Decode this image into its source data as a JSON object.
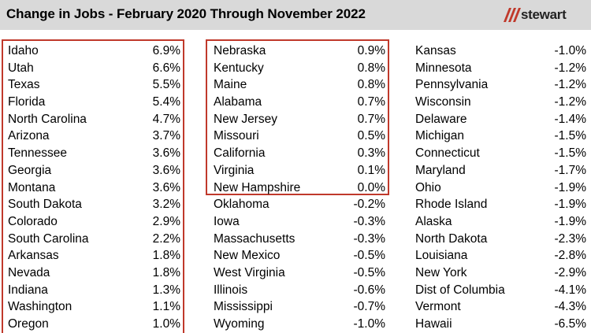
{
  "header": {
    "title": "Change in Jobs - February 2020 Through November 2022",
    "logo_text": "stewart",
    "accent_color": "#c0392b"
  },
  "columns": [
    [
      {
        "state": "Idaho",
        "change": "6.9%"
      },
      {
        "state": "Utah",
        "change": "6.6%"
      },
      {
        "state": "Texas",
        "change": "5.5%"
      },
      {
        "state": "Florida",
        "change": "5.4%"
      },
      {
        "state": "North Carolina",
        "change": "4.7%"
      },
      {
        "state": "Arizona",
        "change": "3.7%"
      },
      {
        "state": "Tennessee",
        "change": "3.6%"
      },
      {
        "state": "Georgia",
        "change": "3.6%"
      },
      {
        "state": "Montana",
        "change": "3.6%"
      },
      {
        "state": "South Dakota",
        "change": "3.2%"
      },
      {
        "state": "Colorado",
        "change": "2.9%"
      },
      {
        "state": "South Carolina",
        "change": "2.2%"
      },
      {
        "state": "Arkansas",
        "change": "1.8%"
      },
      {
        "state": "Nevada",
        "change": "1.8%"
      },
      {
        "state": "Indiana",
        "change": "1.3%"
      },
      {
        "state": "Washington",
        "change": "1.1%"
      },
      {
        "state": "Oregon",
        "change": "1.0%"
      }
    ],
    [
      {
        "state": "Nebraska",
        "change": "0.9%"
      },
      {
        "state": "Kentucky",
        "change": "0.8%"
      },
      {
        "state": "Maine",
        "change": "0.8%"
      },
      {
        "state": "Alabama",
        "change": "0.7%"
      },
      {
        "state": "New Jersey",
        "change": "0.7%"
      },
      {
        "state": "Missouri",
        "change": "0.5%"
      },
      {
        "state": "California",
        "change": "0.3%"
      },
      {
        "state": "Virginia",
        "change": "0.1%"
      },
      {
        "state": "New Hampshire",
        "change": "0.0%"
      },
      {
        "state": "Oklahoma",
        "change": "-0.2%"
      },
      {
        "state": "Iowa",
        "change": "-0.3%"
      },
      {
        "state": "Massachusetts",
        "change": "-0.3%"
      },
      {
        "state": "New Mexico",
        "change": "-0.5%"
      },
      {
        "state": "West Virginia",
        "change": "-0.5%"
      },
      {
        "state": "Illinois",
        "change": "-0.6%"
      },
      {
        "state": "Mississippi",
        "change": "-0.7%"
      },
      {
        "state": "Wyoming",
        "change": "-1.0%"
      }
    ],
    [
      {
        "state": "Kansas",
        "change": "-1.0%"
      },
      {
        "state": "Minnesota",
        "change": "-1.2%"
      },
      {
        "state": "Pennsylvania",
        "change": "-1.2%"
      },
      {
        "state": "Wisconsin",
        "change": "-1.2%"
      },
      {
        "state": "Delaware",
        "change": "-1.4%"
      },
      {
        "state": "Michigan",
        "change": "-1.5%"
      },
      {
        "state": "Connecticut",
        "change": "-1.5%"
      },
      {
        "state": "Maryland",
        "change": "-1.7%"
      },
      {
        "state": "Ohio",
        "change": "-1.9%"
      },
      {
        "state": "Rhode Island",
        "change": "-1.9%"
      },
      {
        "state": "Alaska",
        "change": "-1.9%"
      },
      {
        "state": "North Dakota",
        "change": "-2.3%"
      },
      {
        "state": "Louisiana",
        "change": "-2.8%"
      },
      {
        "state": "New York",
        "change": "-2.9%"
      },
      {
        "state": "Dist of Columbia",
        "change": "-4.1%"
      },
      {
        "state": "Vermont",
        "change": "-4.3%"
      },
      {
        "state": "Hawaii",
        "change": "-6.5%"
      }
    ]
  ]
}
